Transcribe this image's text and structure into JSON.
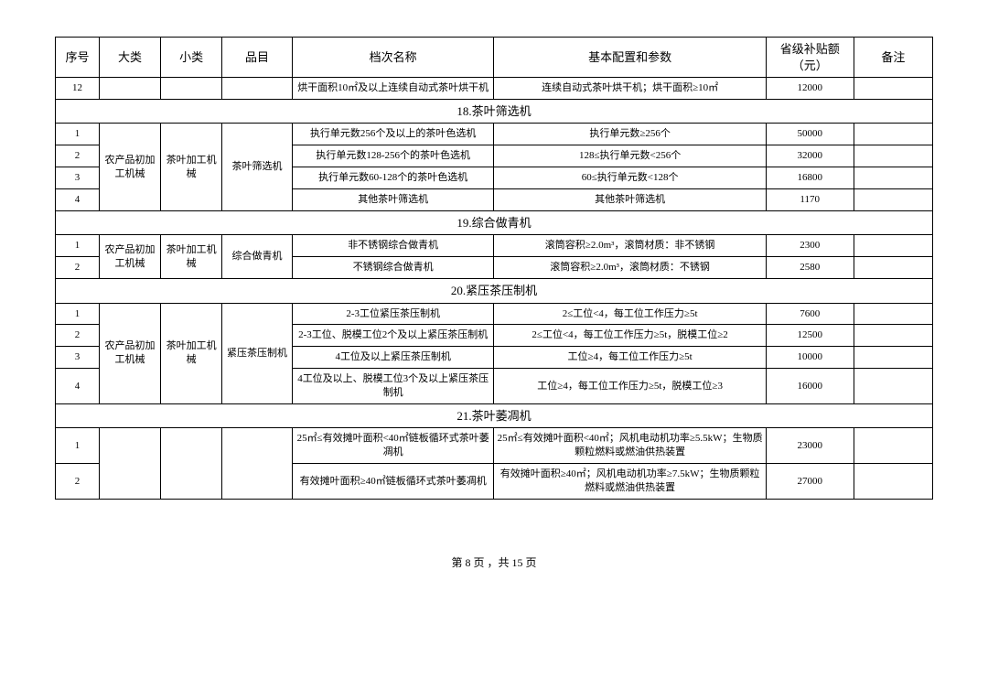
{
  "header": {
    "c1": "序号",
    "c2": "大类",
    "c3": "小类",
    "c4": "品目",
    "c5": "档次名称",
    "c6": "基本配置和参数",
    "c7": "省级补贴额（元）",
    "c8": "备注"
  },
  "top_row": {
    "seq": "12",
    "name": "烘干面积10㎡及以上连续自动式茶叶烘干机",
    "spec": "连续自动式茶叶烘干机；烘干面积≥10㎡",
    "subsidy": "12000"
  },
  "sections": {
    "s18": {
      "title": "18.茶叶筛选机",
      "cat": "农产品初加工机械",
      "sub": "茶叶加工机械",
      "item": "茶叶筛选机",
      "rows": [
        {
          "seq": "1",
          "name": "执行单元数256个及以上的茶叶色选机",
          "spec": "执行单元数≥256个",
          "subsidy": "50000"
        },
        {
          "seq": "2",
          "name": "执行单元数128-256个的茶叶色选机",
          "spec": "128≤执行单元数<256个",
          "subsidy": "32000"
        },
        {
          "seq": "3",
          "name": "执行单元数60-128个的茶叶色选机",
          "spec": "60≤执行单元数<128个",
          "subsidy": "16800"
        },
        {
          "seq": "4",
          "name": "其他茶叶筛选机",
          "spec": "其他茶叶筛选机",
          "subsidy": "1170"
        }
      ]
    },
    "s19": {
      "title": "19.综合做青机",
      "cat": "农产品初加工机械",
      "sub": "茶叶加工机械",
      "item": "综合做青机",
      "rows": [
        {
          "seq": "1",
          "name": "非不锈钢综合做青机",
          "spec": "滚筒容积≥2.0m³，滚筒材质：非不锈钢",
          "subsidy": "2300"
        },
        {
          "seq": "2",
          "name": "不锈钢综合做青机",
          "spec": "滚筒容积≥2.0m³，滚筒材质：不锈钢",
          "subsidy": "2580"
        }
      ]
    },
    "s20": {
      "title": "20.紧压茶压制机",
      "cat": "农产品初加工机械",
      "sub": "茶叶加工机械",
      "item": "紧压茶压制机",
      "rows": [
        {
          "seq": "1",
          "name": "2-3工位紧压茶压制机",
          "spec": "2≤工位<4，每工位工作压力≥5t",
          "subsidy": "7600"
        },
        {
          "seq": "2",
          "name": "2-3工位、脱模工位2个及以上紧压茶压制机",
          "spec": "2≤工位<4，每工位工作压力≥5t，脱模工位≥2",
          "subsidy": "12500"
        },
        {
          "seq": "3",
          "name": "4工位及以上紧压茶压制机",
          "spec": "工位≥4，每工位工作压力≥5t",
          "subsidy": "10000"
        },
        {
          "seq": "4",
          "name": "4工位及以上、脱模工位3个及以上紧压茶压制机",
          "spec": "工位≥4，每工位工作压力≥5t，脱模工位≥3",
          "subsidy": "16000"
        }
      ]
    },
    "s21": {
      "title": "21.茶叶萎凋机",
      "cat": "",
      "sub": "",
      "item": "",
      "rows": [
        {
          "seq": "1",
          "name": "25㎡≤有效摊叶面积<40㎡链板循环式茶叶萎凋机",
          "spec": "25㎡≤有效摊叶面积<40㎡；风机电动机功率≥5.5kW；生物质颗粒燃料或燃油供热装置",
          "subsidy": "23000"
        },
        {
          "seq": "2",
          "name": "有效摊叶面积≥40㎡链板循环式茶叶萎凋机",
          "spec": "有效摊叶面积≥40㎡；风机电动机功率≥7.5kW；生物质颗粒燃料或燃油供热装置",
          "subsidy": "27000"
        }
      ]
    }
  },
  "footer": "第 8 页 ，共 15 页"
}
